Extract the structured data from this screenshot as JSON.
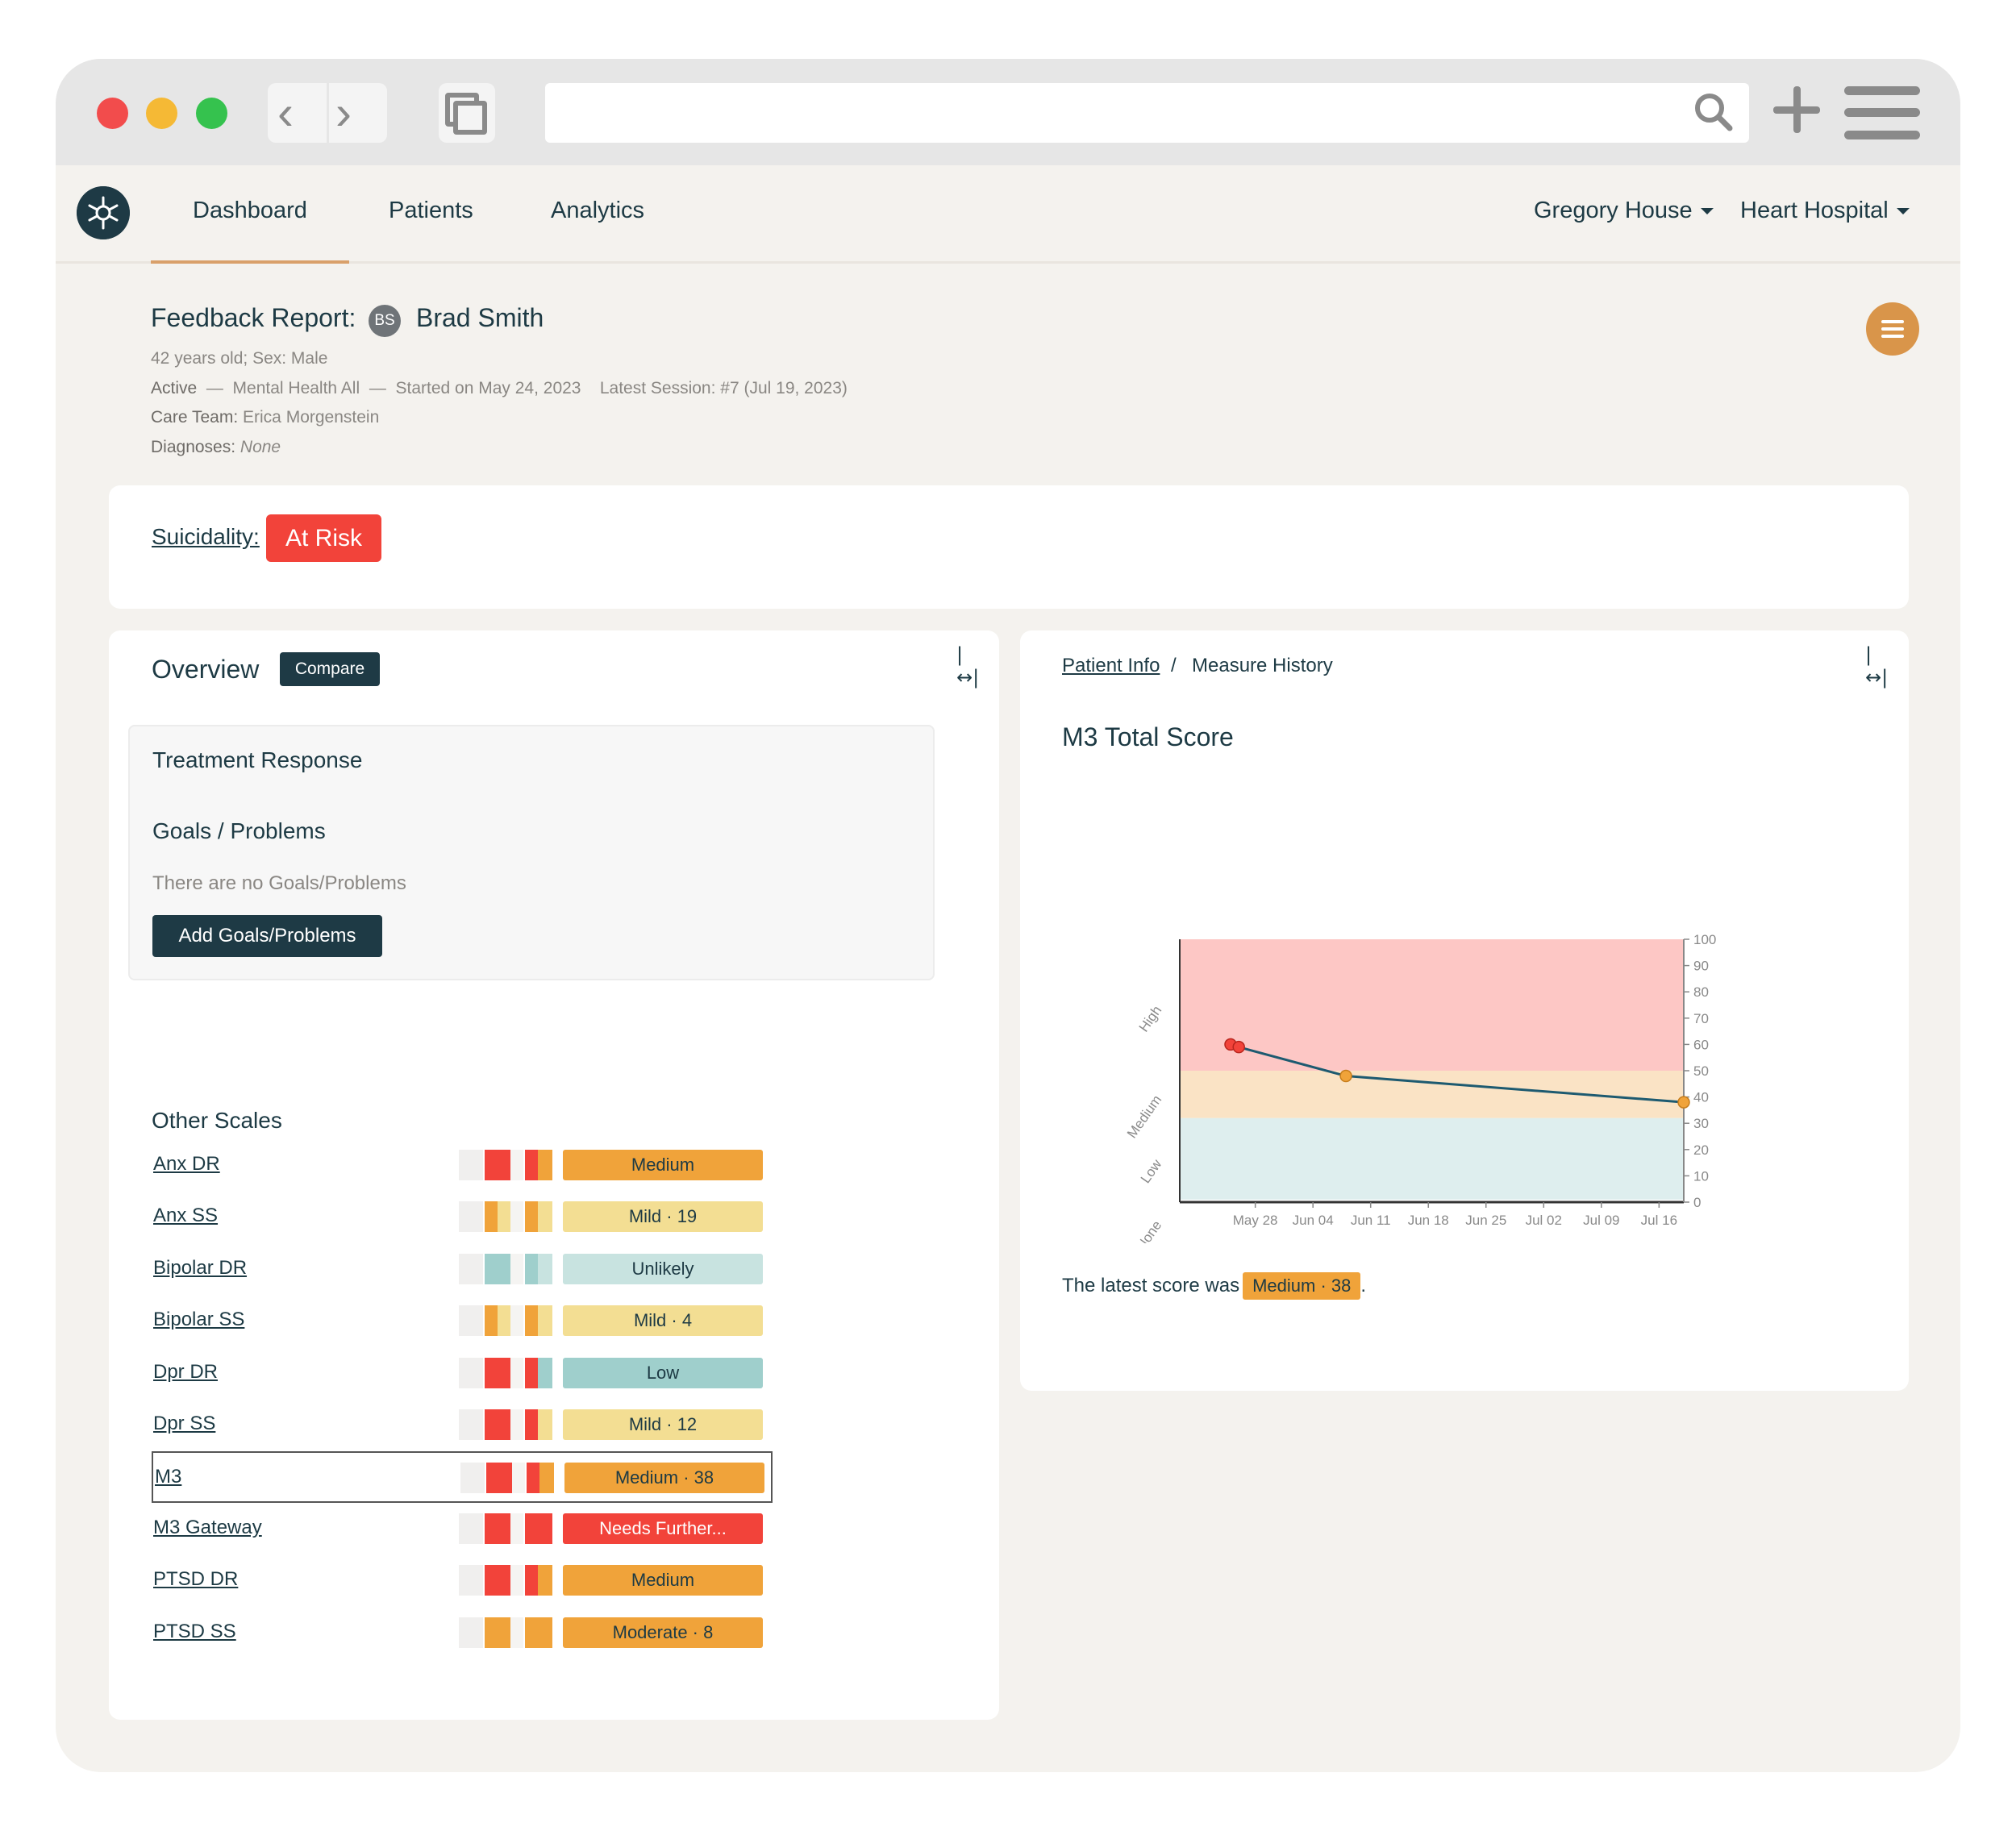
{
  "nav": {
    "items": [
      "Dashboard",
      "Patients",
      "Analytics"
    ],
    "user": "Gregory House",
    "hospital": "Heart Hospital"
  },
  "report": {
    "title": "Feedback Report:",
    "initials": "BS",
    "patient": "Brad Smith",
    "age_sex": "42 years old; Sex: Male",
    "status": "Active",
    "program": "Mental Health All",
    "started": "Started on May 24, 2023",
    "latest_session": "Latest Session: #7 (Jul 19, 2023)",
    "care_team_label": "Care Team:",
    "care_team": "Erica Morgenstein",
    "diagnoses_label": "Diagnoses:",
    "diagnoses": "None"
  },
  "suicidality": {
    "label": "Suicidality:",
    "status": "At Risk",
    "color": "#f2433a"
  },
  "overview": {
    "title": "Overview",
    "compare": "Compare",
    "treatment_response": "Treatment Response",
    "goals_title": "Goals / Problems",
    "no_goals": "There are no Goals/Problems",
    "add_goals": "Add Goals/Problems",
    "other_scales": "Other Scales"
  },
  "scales": [
    {
      "name": "Anx DR",
      "badge": "Medium",
      "color": "#f0a33a",
      "text_color": "#1d3a44",
      "spark": [
        "#f2433a",
        "#f0a33a"
      ]
    },
    {
      "name": "Anx SS",
      "badge": "Mild · 19",
      "color": "#f3de93",
      "text_color": "#1d3a44",
      "spark": [
        "#f0a33a",
        "#f3de93"
      ]
    },
    {
      "name": "Bipolar DR",
      "badge": "Unlikely",
      "color": "#c8e3e0",
      "text_color": "#1d3a44",
      "spark": [
        "#9fcfcc",
        "#c8e3e0"
      ]
    },
    {
      "name": "Bipolar SS",
      "badge": "Mild · 4",
      "color": "#f3de93",
      "text_color": "#1d3a44",
      "spark": [
        "#f0a33a",
        "#f3de93"
      ]
    },
    {
      "name": "Dpr DR",
      "badge": "Low",
      "color": "#9fcfcc",
      "text_color": "#1d3a44",
      "spark": [
        "#f2433a",
        "#9fcfcc"
      ]
    },
    {
      "name": "Dpr SS",
      "badge": "Mild · 12",
      "color": "#f3de93",
      "text_color": "#1d3a44",
      "spark": [
        "#f2433a",
        "#f3de93"
      ]
    },
    {
      "name": "M3",
      "badge": "Medium · 38",
      "color": "#f0a33a",
      "text_color": "#1d3a44",
      "spark": [
        "#f2433a",
        "#f0a33a"
      ]
    },
    {
      "name": "M3 Gateway",
      "badge": "Needs Further...",
      "color": "#f2433a",
      "text_color": "#ffffff",
      "spark": [
        "#f2433a",
        "#f2433a"
      ]
    },
    {
      "name": "PTSD DR",
      "badge": "Medium",
      "color": "#f0a33a",
      "text_color": "#1d3a44",
      "spark": [
        "#f2433a",
        "#f0a33a"
      ]
    },
    {
      "name": "PTSD SS",
      "badge": "Moderate · 8",
      "color": "#f0a33a",
      "text_color": "#1d3a44",
      "spark": [
        "#f0a33a",
        "#f0a33a"
      ]
    }
  ],
  "measure": {
    "crumb_link": "Patient Info",
    "crumb_sep": "/",
    "crumb_current": "Measure History",
    "chart_title": "M3 Total Score",
    "latest_text": "The latest score was",
    "latest_badge": "Medium · 38",
    "latest_end": "."
  },
  "chart_data": {
    "type": "line",
    "title": "M3 Total Score",
    "x_ticks": [
      "May 28",
      "Jun 04",
      "Jun 11",
      "Jun 18",
      "Jun 25",
      "Jul 02",
      "Jul 09",
      "Jul 16"
    ],
    "y_ticks": [
      0,
      10,
      20,
      30,
      40,
      50,
      60,
      70,
      80,
      90,
      100
    ],
    "ylim": [
      0,
      100
    ],
    "bands": [
      {
        "label": "None",
        "from": 0,
        "to": 1,
        "color": "#ffffff"
      },
      {
        "label": "Low",
        "from": 1,
        "to": 32,
        "color": "#deeeee"
      },
      {
        "label": "Medium",
        "from": 32,
        "to": 50,
        "color": "#fae3c5"
      },
      {
        "label": "High",
        "from": 50,
        "to": 100,
        "color": "#fdc7c5"
      }
    ],
    "series": [
      {
        "x": [
          "May 25",
          "May 26",
          "Jun 08",
          "Jul 19"
        ],
        "y": [
          60,
          59,
          48,
          38
        ],
        "colors": [
          "#f2433a",
          "#f2433a",
          "#f0a33a",
          "#f0a33a"
        ]
      }
    ],
    "line_color": "#1d5a70",
    "grid": false
  }
}
